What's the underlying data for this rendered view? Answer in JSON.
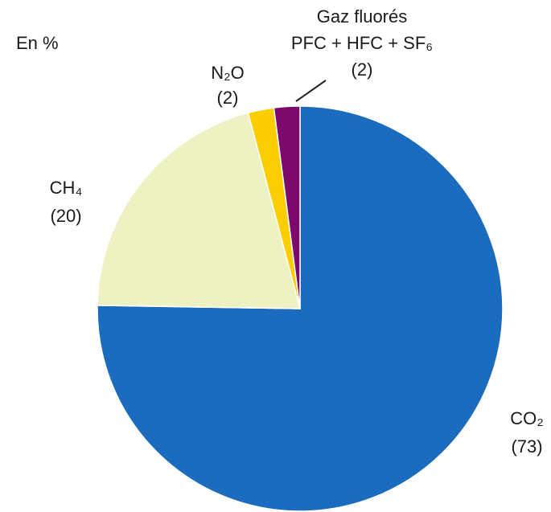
{
  "chart_data": {
    "type": "pie",
    "unit_label": "En %",
    "categories": [
      "CO₂",
      "CH₄",
      "N₂O",
      [
        "Gaz fluorés",
        "PFC + HFC + SF₆"
      ]
    ],
    "values": [
      73,
      20,
      2,
      2
    ],
    "value_labels": [
      "(73)",
      "(20)",
      "(2)",
      "(2)"
    ],
    "colors": [
      "#1b6cbf",
      "#eef2c2",
      "#fccd00",
      "#7b0a6c"
    ],
    "start_angle": 0,
    "direction": "clockwise"
  }
}
